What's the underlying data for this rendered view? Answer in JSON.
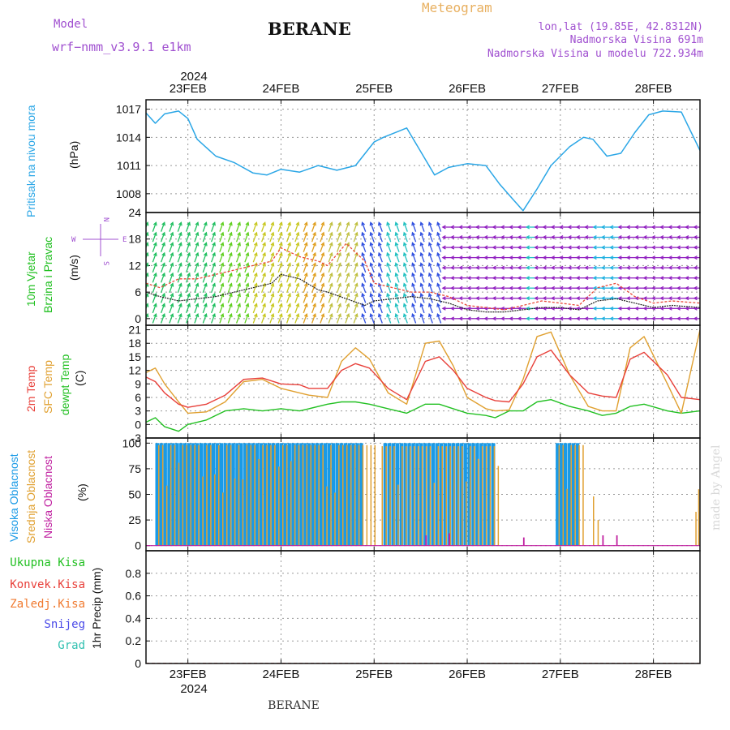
{
  "header": {
    "model_label": "Model",
    "model_name": "wrf−nmm_v3.9.1  e1km",
    "station": "BERANE",
    "product": "Meteogram",
    "location_coords": "lon,lat (19.85E, 42.8312N)",
    "elevation": "Nadmorska Visina 691m",
    "model_elevation": "Nadmorska Visina u modelu 722.934m",
    "footer_station": "BERANE",
    "watermark": "made by Angel"
  },
  "colors": {
    "pressure": "#2aa6e6",
    "wind_speed": "#222222",
    "wind_gust": "#e84a3a",
    "temp_2m": "#e8403a",
    "temp_sfc": "#e0a030",
    "dewpoint": "#22c022",
    "cloud_high": "#1a9ae6",
    "cloud_mid": "#e0a030",
    "cloud_low": "#c020a0",
    "grid": "#999999",
    "model_text": "#a050d0",
    "product_text": "#e8b060"
  },
  "x_axis": {
    "year": "2024",
    "days": [
      "23FEB",
      "24FEB",
      "25FEB",
      "26FEB",
      "27FEB",
      "28FEB"
    ],
    "day_start": 22.55,
    "day_end": 28.5
  },
  "panels": {
    "pressure": {
      "label_main": "Pritisak na nivou mora",
      "unit": "(hPa)"
    },
    "wind": {
      "label_line1": "10m Vjetar",
      "label_line2": "Brzina i Pravac",
      "unit": "(m/s)",
      "compass_n": "N",
      "compass_s": "S",
      "compass_w": "W",
      "compass_e": "E"
    },
    "temperature": {
      "label_line1": "2m Temp",
      "label_line2": "SFC Temp",
      "label_line3": "dewpt Temp",
      "unit": "(C)"
    },
    "cloud": {
      "label_high": "Visoka Oblacnost",
      "label_mid": "Srednja Oblacnost",
      "label_low": "Niska Oblacnost",
      "unit": "(%)"
    },
    "precip": {
      "label_total": "Ukupna Kisa",
      "label_conv": "Konvek.Kisa",
      "label_frz": "Zaledj.Kisa",
      "label_snow": "Snijeg",
      "label_grad": "Grad",
      "unit": "1hr Precip (mm)"
    }
  },
  "chart_data": [
    {
      "type": "line",
      "id": "pressure",
      "ylabel": "(hPa)",
      "ylim": [
        1006,
        1018
      ],
      "yticks": [
        1008,
        1011,
        1014,
        1017
      ],
      "series": [
        {
          "name": "Pritisak na nivou mora",
          "x": [
            22.55,
            22.65,
            22.75,
            22.9,
            23.0,
            23.1,
            23.3,
            23.5,
            23.7,
            23.85,
            24.0,
            24.2,
            24.4,
            24.6,
            24.8,
            25.0,
            25.1,
            25.25,
            25.35,
            25.5,
            25.65,
            25.8,
            26.0,
            26.2,
            26.35,
            26.5,
            26.6,
            26.75,
            26.9,
            27.1,
            27.25,
            27.35,
            27.5,
            27.65,
            27.8,
            27.95,
            28.1,
            28.3,
            28.5
          ],
          "values": [
            1016.6,
            1015.5,
            1016.5,
            1016.8,
            1016.0,
            1013.8,
            1012.0,
            1011.3,
            1010.2,
            1010.0,
            1010.6,
            1010.3,
            1011.0,
            1010.5,
            1011.0,
            1013.5,
            1014.0,
            1014.6,
            1015.0,
            1012.5,
            1010.0,
            1010.8,
            1011.2,
            1011.0,
            1009.0,
            1007.3,
            1006.2,
            1008.5,
            1011.0,
            1013.0,
            1014.0,
            1013.8,
            1012.0,
            1012.3,
            1014.5,
            1016.4,
            1016.8,
            1016.7,
            1012.6
          ]
        }
      ]
    },
    {
      "type": "line",
      "id": "wind",
      "ylabel": "(m/s)",
      "ylim": [
        -1.5,
        24
      ],
      "yticks": [
        0,
        6,
        12,
        18,
        24
      ],
      "series": [
        {
          "name": "speed",
          "x": [
            22.55,
            22.7,
            22.9,
            23.1,
            23.3,
            23.5,
            23.7,
            23.9,
            24.0,
            24.2,
            24.4,
            24.5,
            24.7,
            24.9,
            25.0,
            25.2,
            25.4,
            25.6,
            25.8,
            26.0,
            26.2,
            26.4,
            26.6,
            26.8,
            27.0,
            27.2,
            27.4,
            27.6,
            27.8,
            28.0,
            28.2,
            28.5
          ],
          "values": [
            6,
            5,
            4,
            4.5,
            5,
            6,
            7,
            8,
            10,
            9,
            6.5,
            6,
            4.5,
            3,
            4,
            4.5,
            5,
            4.5,
            3.5,
            2,
            1.5,
            1.5,
            2,
            2.5,
            2.5,
            2,
            4,
            4.5,
            3.5,
            2.5,
            3,
            2.5
          ]
        },
        {
          "name": "gust",
          "x": [
            22.55,
            22.7,
            22.9,
            23.1,
            23.3,
            23.5,
            23.7,
            23.9,
            24.0,
            24.2,
            24.4,
            24.5,
            24.7,
            24.9,
            25.0,
            25.2,
            25.4,
            25.6,
            25.8,
            26.0,
            26.2,
            26.4,
            26.6,
            26.8,
            27.0,
            27.2,
            27.4,
            27.6,
            27.8,
            28.0,
            28.2,
            28.5
          ],
          "values": [
            8,
            7,
            9,
            9,
            10,
            11,
            12,
            13,
            16,
            14,
            13,
            12,
            17,
            13,
            8,
            7,
            6,
            6,
            5,
            3,
            2.5,
            2,
            3,
            4,
            3.5,
            3,
            7,
            8,
            5,
            3.5,
            4,
            3.5
          ]
        }
      ]
    },
    {
      "type": "line",
      "id": "temperature",
      "ylabel": "(C)",
      "ylim": [
        -3,
        22
      ],
      "yticks": [
        -3,
        0,
        3,
        6,
        9,
        12,
        15,
        18,
        21
      ],
      "series": [
        {
          "name": "2m Temp",
          "x": [
            22.55,
            22.65,
            22.75,
            22.9,
            23.0,
            23.2,
            23.4,
            23.6,
            23.8,
            24.0,
            24.2,
            24.3,
            24.5,
            24.65,
            24.8,
            24.95,
            25.15,
            25.35,
            25.55,
            25.7,
            25.85,
            26.0,
            26.2,
            26.3,
            26.45,
            26.6,
            26.75,
            26.9,
            27.1,
            27.3,
            27.45,
            27.6,
            27.75,
            27.9,
            28.15,
            28.3,
            28.5
          ],
          "values": [
            10.5,
            9.5,
            7,
            4.5,
            3.8,
            4.5,
            6.5,
            10,
            10.3,
            9,
            8.8,
            8,
            8,
            12,
            13.5,
            12.5,
            8,
            5.5,
            14,
            15,
            12,
            8,
            6,
            5.3,
            5,
            9,
            15,
            16.5,
            11,
            7,
            6.3,
            6,
            14.5,
            16,
            11,
            6,
            5.5
          ]
        },
        {
          "name": "SFC Temp",
          "x": [
            22.55,
            22.65,
            22.75,
            22.9,
            23.0,
            23.2,
            23.4,
            23.6,
            23.8,
            24.0,
            24.2,
            24.3,
            24.5,
            24.65,
            24.8,
            24.95,
            25.15,
            25.35,
            25.55,
            25.7,
            25.85,
            26.0,
            26.2,
            26.3,
            26.45,
            26.6,
            26.75,
            26.9,
            27.1,
            27.3,
            27.45,
            27.6,
            27.75,
            27.9,
            28.15,
            28.3,
            28.5
          ],
          "values": [
            11.5,
            12.5,
            9,
            5,
            2.5,
            2.8,
            5,
            9.5,
            10,
            8,
            7,
            6.5,
            6,
            14,
            17,
            14.5,
            7,
            4.5,
            18,
            18.5,
            13,
            6,
            3.5,
            3,
            3.2,
            10,
            19.5,
            20.5,
            11,
            4,
            3,
            3,
            17,
            19.5,
            9,
            2.5,
            21
          ]
        },
        {
          "name": "dewpt Temp",
          "x": [
            22.55,
            22.65,
            22.75,
            22.9,
            23.0,
            23.2,
            23.4,
            23.6,
            23.8,
            24.0,
            24.2,
            24.3,
            24.5,
            24.65,
            24.8,
            24.95,
            25.15,
            25.35,
            25.55,
            25.7,
            25.85,
            26.0,
            26.2,
            26.3,
            26.45,
            26.6,
            26.75,
            26.9,
            27.1,
            27.3,
            27.45,
            27.6,
            27.75,
            27.9,
            28.15,
            28.3,
            28.5
          ],
          "values": [
            0.5,
            1.5,
            -0.5,
            -1.5,
            0,
            1,
            3,
            3.5,
            3,
            3.5,
            3,
            3.5,
            4.5,
            5,
            5,
            4.5,
            3.5,
            2.5,
            4.5,
            4.5,
            3.5,
            2.5,
            2,
            1.5,
            3,
            3,
            5,
            5.5,
            4,
            3,
            2,
            2.5,
            4,
            4.5,
            3,
            2.5,
            3
          ]
        }
      ]
    },
    {
      "type": "bar",
      "id": "cloud",
      "ylabel": "(%)",
      "ylim": [
        -5,
        105
      ],
      "yticks": [
        0,
        25,
        50,
        75,
        100
      ],
      "series": [
        {
          "name": "Visoka Oblacnost",
          "ranges": [
            [
              22.65,
              24.85
            ],
            [
              25.1,
              26.3
            ],
            [
              26.95,
              27.2
            ]
          ],
          "values": [
            100,
            100,
            100
          ]
        },
        {
          "name": "Srednja Oblacnost",
          "ranges": [
            [
              22.65,
              25.0
            ],
            [
              25.05,
              26.3
            ],
            [
              26.95,
              27.25
            ]
          ],
          "values": [
            98,
            97,
            98
          ]
        },
        {
          "name": "Niska Oblacnost",
          "ranges": [
            [
              25.55,
              25.6
            ],
            [
              25.8,
              25.85
            ],
            [
              26.6,
              26.65
            ],
            [
              27.45,
              27.5
            ],
            [
              27.6,
              27.65
            ]
          ],
          "values": [
            10,
            12,
            8,
            10,
            10
          ]
        }
      ]
    },
    {
      "type": "line",
      "id": "precip",
      "ylabel": "1hr Precip (mm)",
      "ylim": [
        0,
        1.0
      ],
      "yticks": [
        0,
        0.2,
        0.4,
        0.6,
        0.8
      ],
      "series": [
        {
          "name": "Ukupna Kisa",
          "x": [
            22.55,
            28.5
          ],
          "values": [
            0,
            0
          ]
        }
      ]
    }
  ]
}
